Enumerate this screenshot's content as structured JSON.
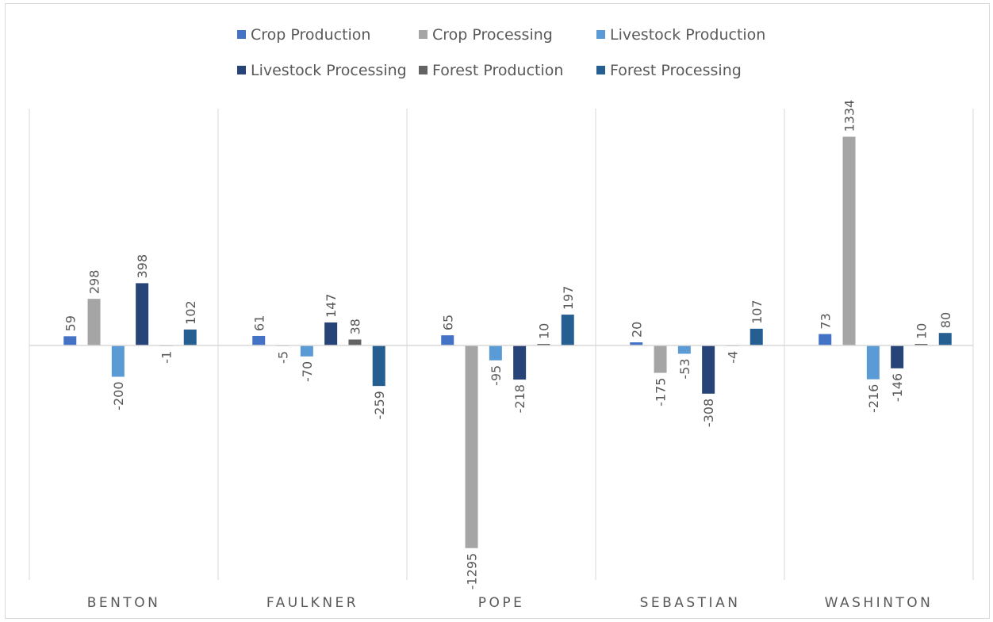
{
  "chart_data": {
    "type": "bar",
    "title": "",
    "xlabel": "",
    "ylabel": "",
    "categories": [
      "BENTON",
      "FAULKNER",
      "POPE",
      "SEBASTIAN",
      "WASHINTON"
    ],
    "series": [
      {
        "name": "Crop Production",
        "color": "#4472C4",
        "values": [
          59,
          61,
          65,
          20,
          73
        ]
      },
      {
        "name": "Crop Processing",
        "color": "#A5A5A5",
        "values": [
          298,
          -5,
          -1295,
          -175,
          1334
        ]
      },
      {
        "name": "Livestock Production",
        "color": "#5B9BD5",
        "values": [
          -200,
          -70,
          -95,
          -53,
          -216
        ]
      },
      {
        "name": "Livestock Processing",
        "color": "#264478",
        "values": [
          398,
          147,
          -218,
          -308,
          -146
        ]
      },
      {
        "name": "Forest Production",
        "color": "#636363",
        "values": [
          -1,
          38,
          10,
          -4,
          10
        ]
      },
      {
        "name": "Forest Processing",
        "color": "#255E91",
        "values": [
          102,
          -259,
          197,
          107,
          80
        ]
      }
    ],
    "ylim": [
      -1500,
      1500
    ],
    "grid": "vertical category separators",
    "legend": "top-center",
    "data_labels": true
  }
}
